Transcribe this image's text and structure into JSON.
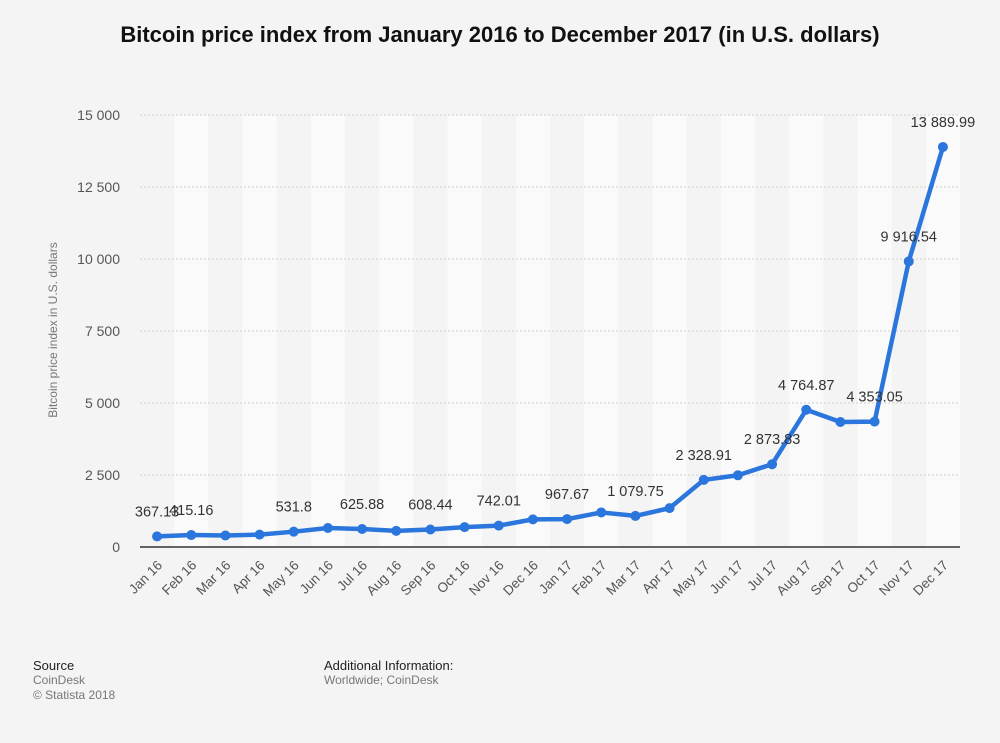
{
  "chart_title": "Bitcoin price index from January 2016 to December 2017 (in U.S. dollars)",
  "colors": {
    "line": "#2a76dc",
    "background": "#f4f4f4",
    "band": "#fafafa",
    "grid": "#cfcfcf"
  },
  "chart_data": {
    "type": "line",
    "title": "Bitcoin price index from January 2016 to December 2017 (in U.S. dollars)",
    "xlabel": "",
    "ylabel": "Bitcoin price index in U.S. dollars",
    "ylim": [
      0,
      15000
    ],
    "yticks": [
      0,
      2500,
      5000,
      7500,
      10000,
      12500,
      15000
    ],
    "ytick_labels": [
      "0",
      "2 500",
      "5 000",
      "7 500",
      "10 000",
      "12 500",
      "15 000"
    ],
    "grid": true,
    "categories": [
      "Jan 16",
      "Feb 16",
      "Mar 16",
      "Apr 16",
      "May 16",
      "Jun 16",
      "Jul 16",
      "Aug 16",
      "Sep 16",
      "Oct 16",
      "Nov 16",
      "Dec 16",
      "Jan 17",
      "Feb 17",
      "Mar 17",
      "Apr 17",
      "May 17",
      "Jun 17",
      "Jul 17",
      "Aug 17",
      "Sep 17",
      "Oct 17",
      "Nov 17",
      "Dec 17"
    ],
    "series": [
      {
        "values": [
          367.13,
          415.16,
          400,
          430,
          531.8,
          660,
          625.88,
          560,
          608.44,
          690,
          742.01,
          960,
          967.67,
          1200,
          1079.75,
          1350,
          2328.91,
          2490,
          2873.83,
          4764.87,
          4340,
          4353.05,
          9916.54,
          13889.99
        ],
        "labels": [
          "367.13",
          "415.16",
          "",
          "",
          "531.8",
          "",
          "625.88",
          "",
          "608.44",
          "",
          "742.01",
          "",
          "967.67",
          "",
          "1 079.75",
          "",
          "2 328.91",
          "",
          "2 873.83",
          "4 764.87",
          "",
          "4 353.05",
          "9 916.54",
          "13 889.99"
        ]
      }
    ]
  },
  "footer": {
    "source_heading": "Source",
    "source_name": "CoinDesk",
    "copyright": "© Statista 2018",
    "additional_heading": "Additional Information:",
    "additional_text": "Worldwide; CoinDesk"
  }
}
